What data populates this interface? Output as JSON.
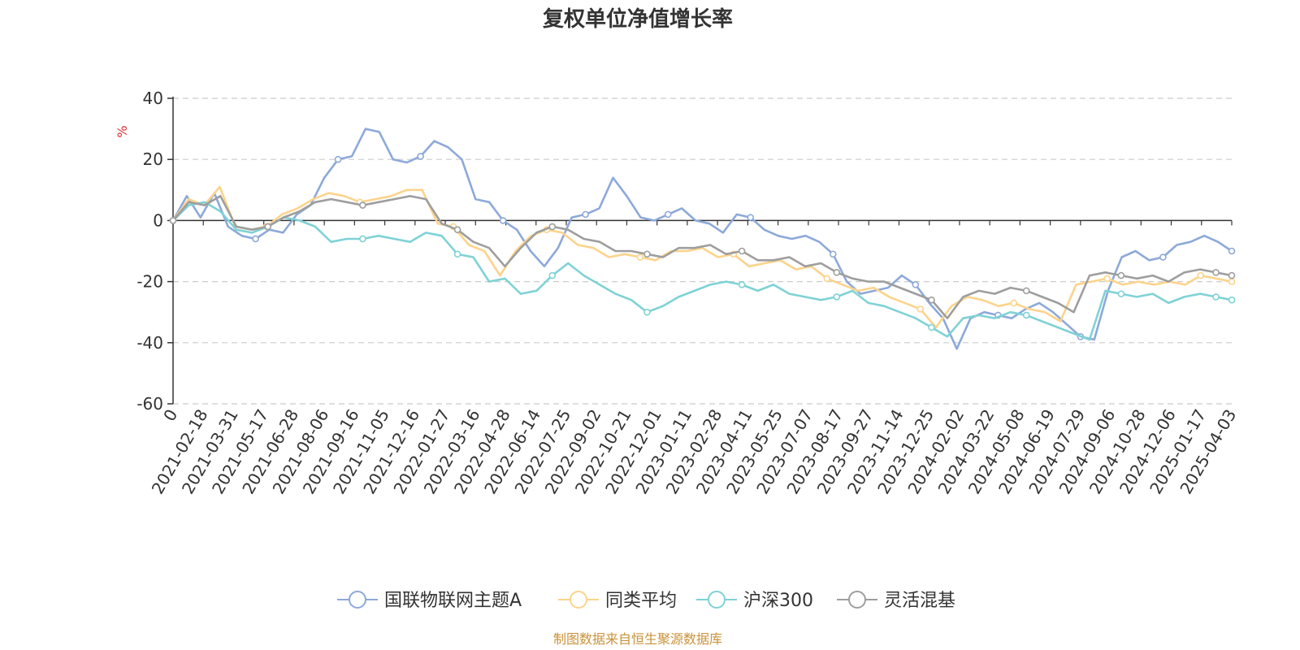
{
  "chart_data": {
    "type": "line",
    "title": "复权单位净值增长率",
    "y_unit": "%",
    "ylim": [
      -60,
      40
    ],
    "y_ticks": [
      "40",
      "20",
      "0",
      "-20",
      "-40",
      "-60"
    ],
    "x_tick_labels": [
      "0",
      "2021-02-18",
      "2021-03-31",
      "2021-05-17",
      "2021-06-28",
      "2021-08-06",
      "2021-09-16",
      "2021-11-05",
      "2021-12-16",
      "2022-01-27",
      "2022-03-16",
      "2022-04-28",
      "2022-06-14",
      "2022-07-25",
      "2022-09-02",
      "2022-10-21",
      "2022-12-01",
      "2023-01-11",
      "2023-02-28",
      "2023-04-11",
      "2023-05-25",
      "2023-07-07",
      "2023-08-17",
      "2023-09-27",
      "2023-11-14",
      "2023-12-25",
      "2024-02-02",
      "2024-03-22",
      "2024-05-08",
      "2024-06-19",
      "2024-07-29",
      "2024-09-06",
      "2024-10-28",
      "2024-12-06",
      "2025-01-17",
      "2025-04-03"
    ],
    "grid": "dashed-horizontal",
    "legend_position": "bottom",
    "series": [
      {
        "name": "国联物联网主题A",
        "color": "#8da9d9",
        "values": [
          0,
          8,
          1,
          9,
          -2,
          -5,
          -6,
          -3,
          -4,
          2,
          5,
          14,
          20,
          21,
          30,
          29,
          20,
          19,
          21,
          26,
          24,
          20,
          7,
          6,
          0,
          -3,
          -10,
          -15,
          -9,
          1,
          2,
          4,
          14,
          8,
          1,
          0,
          2,
          4,
          0,
          -1,
          -4,
          2,
          1,
          -3,
          -5,
          -6,
          -5,
          -7,
          -11,
          -20,
          -24,
          -23,
          -22,
          -18,
          -21,
          -27,
          -32,
          -42,
          -32,
          -30,
          -31,
          -32,
          -29,
          -27,
          -30,
          -34,
          -38,
          -39,
          -23,
          -12,
          -10,
          -13,
          -12,
          -8,
          -7,
          -5,
          -7,
          -10
        ]
      },
      {
        "name": "同类平均",
        "color": "#fdd38b",
        "values": [
          0,
          7,
          5,
          11,
          -2,
          -3,
          -2,
          2,
          4,
          7,
          9,
          8,
          6,
          7,
          8,
          10,
          10,
          -1,
          -2,
          -8,
          -10,
          -18,
          -10,
          -5,
          -3,
          -4,
          -8,
          -9,
          -12,
          -11,
          -12,
          -13,
          -10,
          -10,
          -9,
          -12,
          -11,
          -15,
          -14,
          -13,
          -16,
          -15,
          -19,
          -21,
          -23,
          -22,
          -25,
          -27,
          -29,
          -35,
          -28,
          -25,
          -26,
          -28,
          -27,
          -29,
          -30,
          -33,
          -21,
          -20,
          -19,
          -21,
          -20,
          -21,
          -20,
          -21,
          -18,
          -19,
          -20
        ]
      },
      {
        "name": "沪深300",
        "color": "#7fd2d6",
        "values": [
          0,
          5,
          6,
          3,
          -3,
          -4,
          -2,
          1,
          0,
          -2,
          -7,
          -6,
          -6,
          -5,
          -6,
          -7,
          -4,
          -5,
          -11,
          -12,
          -20,
          -19,
          -24,
          -23,
          -18,
          -14,
          -18,
          -21,
          -24,
          -26,
          -30,
          -28,
          -25,
          -23,
          -21,
          -20,
          -21,
          -23,
          -21,
          -24,
          -25,
          -26,
          -25,
          -23,
          -27,
          -28,
          -30,
          -32,
          -35,
          -38,
          -32,
          -31,
          -32,
          -30,
          -31,
          -33,
          -35,
          -37,
          -39,
          -23,
          -24,
          -25,
          -24,
          -27,
          -25,
          -24,
          -25,
          -26
        ]
      },
      {
        "name": "灵活混基",
        "color": "#9e9e9e",
        "values": [
          0,
          6,
          5,
          8,
          -2,
          -3,
          -2,
          1,
          3,
          6,
          7,
          6,
          5,
          6,
          7,
          8,
          7,
          -1,
          -3,
          -7,
          -9,
          -15,
          -9,
          -4,
          -2,
          -3,
          -6,
          -7,
          -10,
          -10,
          -11,
          -12,
          -9,
          -9,
          -8,
          -11,
          -10,
          -13,
          -13,
          -12,
          -15,
          -14,
          -17,
          -19,
          -20,
          -20,
          -22,
          -24,
          -26,
          -32,
          -25,
          -23,
          -24,
          -22,
          -23,
          -25,
          -27,
          -30,
          -18,
          -17,
          -18,
          -19,
          -18,
          -20,
          -17,
          -16,
          -17,
          -18
        ]
      }
    ]
  },
  "footer": {
    "source": "制图数据来自恒生聚源数据库"
  },
  "colors": {
    "axis": "#333333",
    "grid": "#cccccc",
    "unit": "#e03030",
    "source": "#c9923a"
  }
}
